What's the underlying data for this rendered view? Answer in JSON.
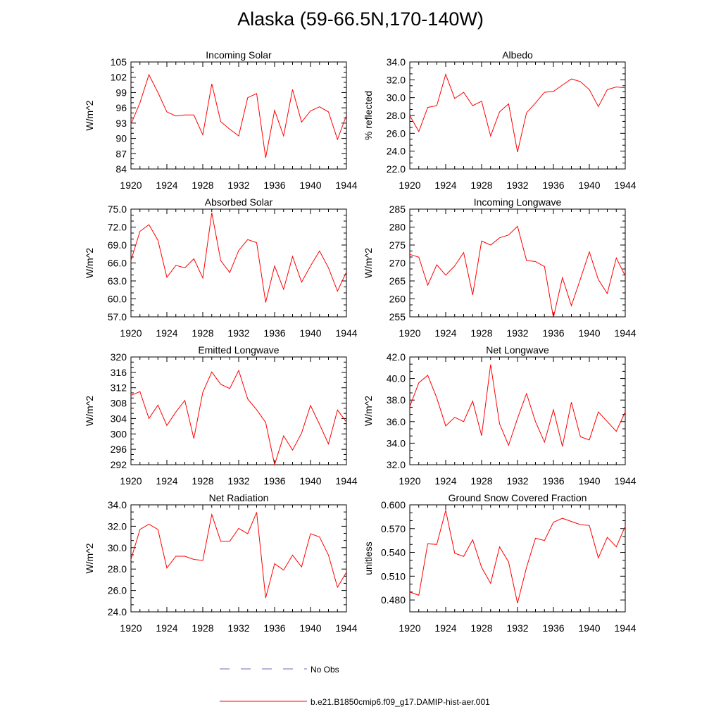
{
  "title": "Alaska (59-66.5N,170-140W)",
  "line_color": "#ff0000",
  "obs_color": "#6b6bbf",
  "x_years": [
    1920,
    1921,
    1922,
    1923,
    1924,
    1925,
    1926,
    1927,
    1928,
    1929,
    1930,
    1931,
    1932,
    1933,
    1934,
    1935,
    1936,
    1937,
    1938,
    1939,
    1940,
    1941,
    1942,
    1943,
    1944
  ],
  "legend": {
    "obs_label": "No Obs",
    "model_label": "b.e21.B1850cmip6.f09_g17.DAMIP-hist-aer.001"
  },
  "chart_data": [
    {
      "type": "line",
      "title": "Incoming Solar",
      "ylabel": "W/m^2",
      "ylim": [
        84,
        105
      ],
      "yticks": [
        "84",
        "87",
        "90",
        "93",
        "96",
        "99",
        "102",
        "105"
      ],
      "xticks": [
        "1920",
        "1924",
        "1928",
        "1932",
        "1936",
        "1940",
        "1944"
      ],
      "xlim": [
        1920,
        1944
      ],
      "values": [
        92.8,
        97.0,
        102.5,
        99.0,
        95.2,
        94.4,
        94.6,
        94.6,
        90.7,
        100.7,
        93.3,
        91.8,
        90.5,
        98.0,
        98.8,
        86.2,
        95.5,
        90.5,
        99.6,
        93.2,
        95.4,
        96.2,
        95.2,
        89.8,
        94.5
      ]
    },
    {
      "type": "line",
      "title": "Albedo",
      "ylabel": "% reflected",
      "ylim": [
        22,
        34
      ],
      "yticks": [
        "22.0",
        "24.0",
        "26.0",
        "28.0",
        "30.0",
        "32.0",
        "34.0"
      ],
      "xticks": [
        "1920",
        "1924",
        "1928",
        "1932",
        "1936",
        "1940",
        "1944"
      ],
      "xlim": [
        1920,
        1944
      ],
      "values": [
        28.0,
        26.2,
        28.9,
        29.1,
        32.6,
        29.9,
        30.6,
        29.1,
        29.6,
        25.7,
        28.4,
        29.3,
        23.9,
        28.3,
        29.4,
        30.6,
        30.7,
        31.4,
        32.1,
        31.8,
        30.9,
        29.0,
        30.9,
        31.2,
        31.1
      ]
    },
    {
      "type": "line",
      "title": "Absorbed Solar",
      "ylabel": "W/m^2",
      "ylim": [
        57,
        75
      ],
      "yticks": [
        "57.0",
        "60.0",
        "63.0",
        "66.0",
        "69.0",
        "72.0",
        "75.0"
      ],
      "xticks": [
        "1920",
        "1924",
        "1928",
        "1932",
        "1936",
        "1940",
        "1944"
      ],
      "xlim": [
        1920,
        1944
      ],
      "values": [
        66.4,
        71.3,
        72.4,
        69.8,
        63.6,
        65.6,
        65.2,
        66.7,
        63.5,
        74.4,
        66.4,
        64.4,
        68.1,
        69.9,
        69.4,
        59.4,
        65.5,
        61.6,
        67.1,
        62.8,
        65.5,
        68.0,
        65.2,
        61.3,
        64.5
      ]
    },
    {
      "type": "line",
      "title": "Incoming Longwave",
      "ylabel": "W/m^2",
      "ylim": [
        255,
        285
      ],
      "yticks": [
        "255",
        "260",
        "265",
        "270",
        "275",
        "280",
        "285"
      ],
      "xticks": [
        "1920",
        "1924",
        "1928",
        "1932",
        "1936",
        "1940",
        "1944"
      ],
      "xlim": [
        1920,
        1944
      ],
      "values": [
        272.4,
        271.6,
        263.8,
        269.5,
        266.6,
        269.2,
        272.9,
        261.1,
        276.1,
        275.0,
        277.0,
        277.8,
        280.2,
        270.7,
        270.4,
        269.0,
        254.8,
        265.9,
        258.1,
        265.5,
        273.1,
        265.4,
        261.5,
        271.4,
        266.4
      ]
    },
    {
      "type": "line",
      "title": "Emitted Longwave",
      "ylabel": "W/m^2",
      "ylim": [
        292,
        320
      ],
      "yticks": [
        "292",
        "296",
        "300",
        "304",
        "308",
        "312",
        "316",
        "320"
      ],
      "xticks": [
        "1920",
        "1924",
        "1928",
        "1932",
        "1936",
        "1940",
        "1944"
      ],
      "xlim": [
        1920,
        1944
      ],
      "values": [
        310.0,
        311.0,
        304.0,
        307.5,
        302.2,
        305.7,
        308.7,
        298.8,
        310.8,
        316.1,
        312.9,
        311.8,
        316.5,
        309.1,
        306.3,
        303.0,
        292.0,
        299.5,
        295.8,
        300.2,
        307.4,
        302.5,
        297.4,
        306.2,
        303.1
      ]
    },
    {
      "type": "line",
      "title": "Net Longwave",
      "ylabel": "W/m^2",
      "ylim": [
        32,
        42
      ],
      "yticks": [
        "32.0",
        "34.0",
        "36.0",
        "38.0",
        "40.0",
        "42.0"
      ],
      "xticks": [
        "1920",
        "1924",
        "1928",
        "1932",
        "1936",
        "1940",
        "1944"
      ],
      "xlim": [
        1920,
        1944
      ],
      "values": [
        37.4,
        39.6,
        40.3,
        38.2,
        35.6,
        36.4,
        36.0,
        37.9,
        34.7,
        41.3,
        35.8,
        33.8,
        36.3,
        38.6,
        36.0,
        34.1,
        37.1,
        33.7,
        37.8,
        34.6,
        34.3,
        36.9,
        36.0,
        35.1,
        36.9
      ]
    },
    {
      "type": "line",
      "title": "Net Radiation",
      "ylabel": "W/m^2",
      "ylim": [
        24,
        34
      ],
      "yticks": [
        "24.0",
        "26.0",
        "28.0",
        "30.0",
        "32.0",
        "34.0"
      ],
      "xticks": [
        "1920",
        "1924",
        "1928",
        "1932",
        "1936",
        "1940",
        "1944"
      ],
      "xlim": [
        1920,
        1944
      ],
      "values": [
        28.9,
        31.7,
        32.2,
        31.7,
        28.1,
        29.2,
        29.2,
        28.9,
        28.8,
        33.1,
        30.6,
        30.6,
        31.8,
        31.3,
        33.3,
        25.3,
        28.5,
        27.9,
        29.3,
        28.2,
        31.3,
        31.0,
        29.3,
        26.3,
        27.7
      ]
    },
    {
      "type": "line",
      "title": "Ground Snow Covered Fraction",
      "ylabel": "unitless",
      "ylim": [
        0.465,
        0.6
      ],
      "yticks": [
        "0.480",
        "0.510",
        "0.540",
        "0.570",
        "0.600"
      ],
      "ytick_values": [
        0.48,
        0.51,
        0.54,
        0.57,
        0.6
      ],
      "xticks": [
        "1920",
        "1924",
        "1928",
        "1932",
        "1936",
        "1940",
        "1944"
      ],
      "xlim": [
        1920,
        1944
      ],
      "values": [
        0.49,
        0.486,
        0.551,
        0.55,
        0.593,
        0.539,
        0.535,
        0.556,
        0.521,
        0.501,
        0.547,
        0.528,
        0.476,
        0.521,
        0.558,
        0.555,
        0.578,
        0.583,
        0.579,
        0.575,
        0.574,
        0.533,
        0.559,
        0.547,
        0.573
      ]
    }
  ]
}
